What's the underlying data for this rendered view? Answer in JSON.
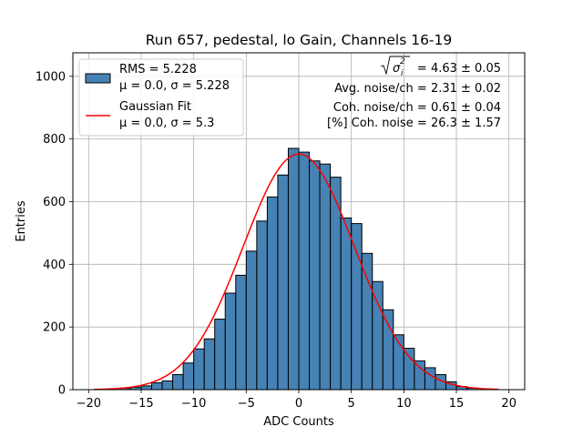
{
  "chart_data": {
    "type": "bar",
    "title": "Run 657, pedestal, lo Gain, Channels 16-19",
    "xlabel": "ADC Counts",
    "ylabel": "Entries",
    "xlim": [
      -21.5,
      21.5
    ],
    "ylim": [
      0,
      1075
    ],
    "xticks": [
      -20,
      -15,
      -10,
      -5,
      0,
      5,
      10,
      15,
      20
    ],
    "yticks": [
      0,
      200,
      400,
      600,
      800,
      1000
    ],
    "grid": true,
    "legend_placement": "top-left",
    "bin_width": 1,
    "bins": [
      {
        "x0": -17,
        "value": 5
      },
      {
        "x0": -16,
        "value": 8
      },
      {
        "x0": -15,
        "value": 12
      },
      {
        "x0": -14,
        "value": 22
      },
      {
        "x0": -13,
        "value": 28
      },
      {
        "x0": -12,
        "value": 48
      },
      {
        "x0": -11,
        "value": 85
      },
      {
        "x0": -10,
        "value": 130
      },
      {
        "x0": -9,
        "value": 162
      },
      {
        "x0": -8,
        "value": 225
      },
      {
        "x0": -7,
        "value": 308
      },
      {
        "x0": -6,
        "value": 365
      },
      {
        "x0": -5,
        "value": 442
      },
      {
        "x0": -4,
        "value": 538
      },
      {
        "x0": -3,
        "value": 615
      },
      {
        "x0": -2,
        "value": 685
      },
      {
        "x0": -1,
        "value": 770
      },
      {
        "x0": 0,
        "value": 758
      },
      {
        "x0": 1,
        "value": 730
      },
      {
        "x0": 2,
        "value": 720
      },
      {
        "x0": 3,
        "value": 678
      },
      {
        "x0": 4,
        "value": 548
      },
      {
        "x0": 5,
        "value": 530
      },
      {
        "x0": 6,
        "value": 435
      },
      {
        "x0": 7,
        "value": 345
      },
      {
        "x0": 8,
        "value": 255
      },
      {
        "x0": 9,
        "value": 175
      },
      {
        "x0": 10,
        "value": 132
      },
      {
        "x0": 11,
        "value": 92
      },
      {
        "x0": 12,
        "value": 70
      },
      {
        "x0": 13,
        "value": 48
      },
      {
        "x0": 14,
        "value": 25
      },
      {
        "x0": 15,
        "value": 10
      },
      {
        "x0": 16,
        "value": 5
      }
    ],
    "fit": {
      "type": "gaussian",
      "mu": 0.0,
      "sigma": 5.3,
      "amplitude": 752,
      "x_range": [
        -19.5,
        19
      ]
    },
    "series": [
      {
        "name": "RMS = 5.228",
        "subtitle": "μ = 0.0, σ = 5.228",
        "color": "#4682b4",
        "edge": "#000000"
      },
      {
        "name": "Gaussian Fit",
        "subtitle": "μ = 0.0, σ = 5.3",
        "color": "#ff0000"
      }
    ],
    "annotations": {
      "total_noise": "√σ² = 4.63 ± 0.05",
      "total_noise_value": "= 4.63 ± 0.05",
      "avg_noise": "Avg. noise/ch = 2.31 ± 0.02",
      "coh_noise": "Coh. noise/ch = 0.61 ± 0.04",
      "coh_pct": "[%] Coh. noise = 26.3 ± 1.57"
    }
  }
}
